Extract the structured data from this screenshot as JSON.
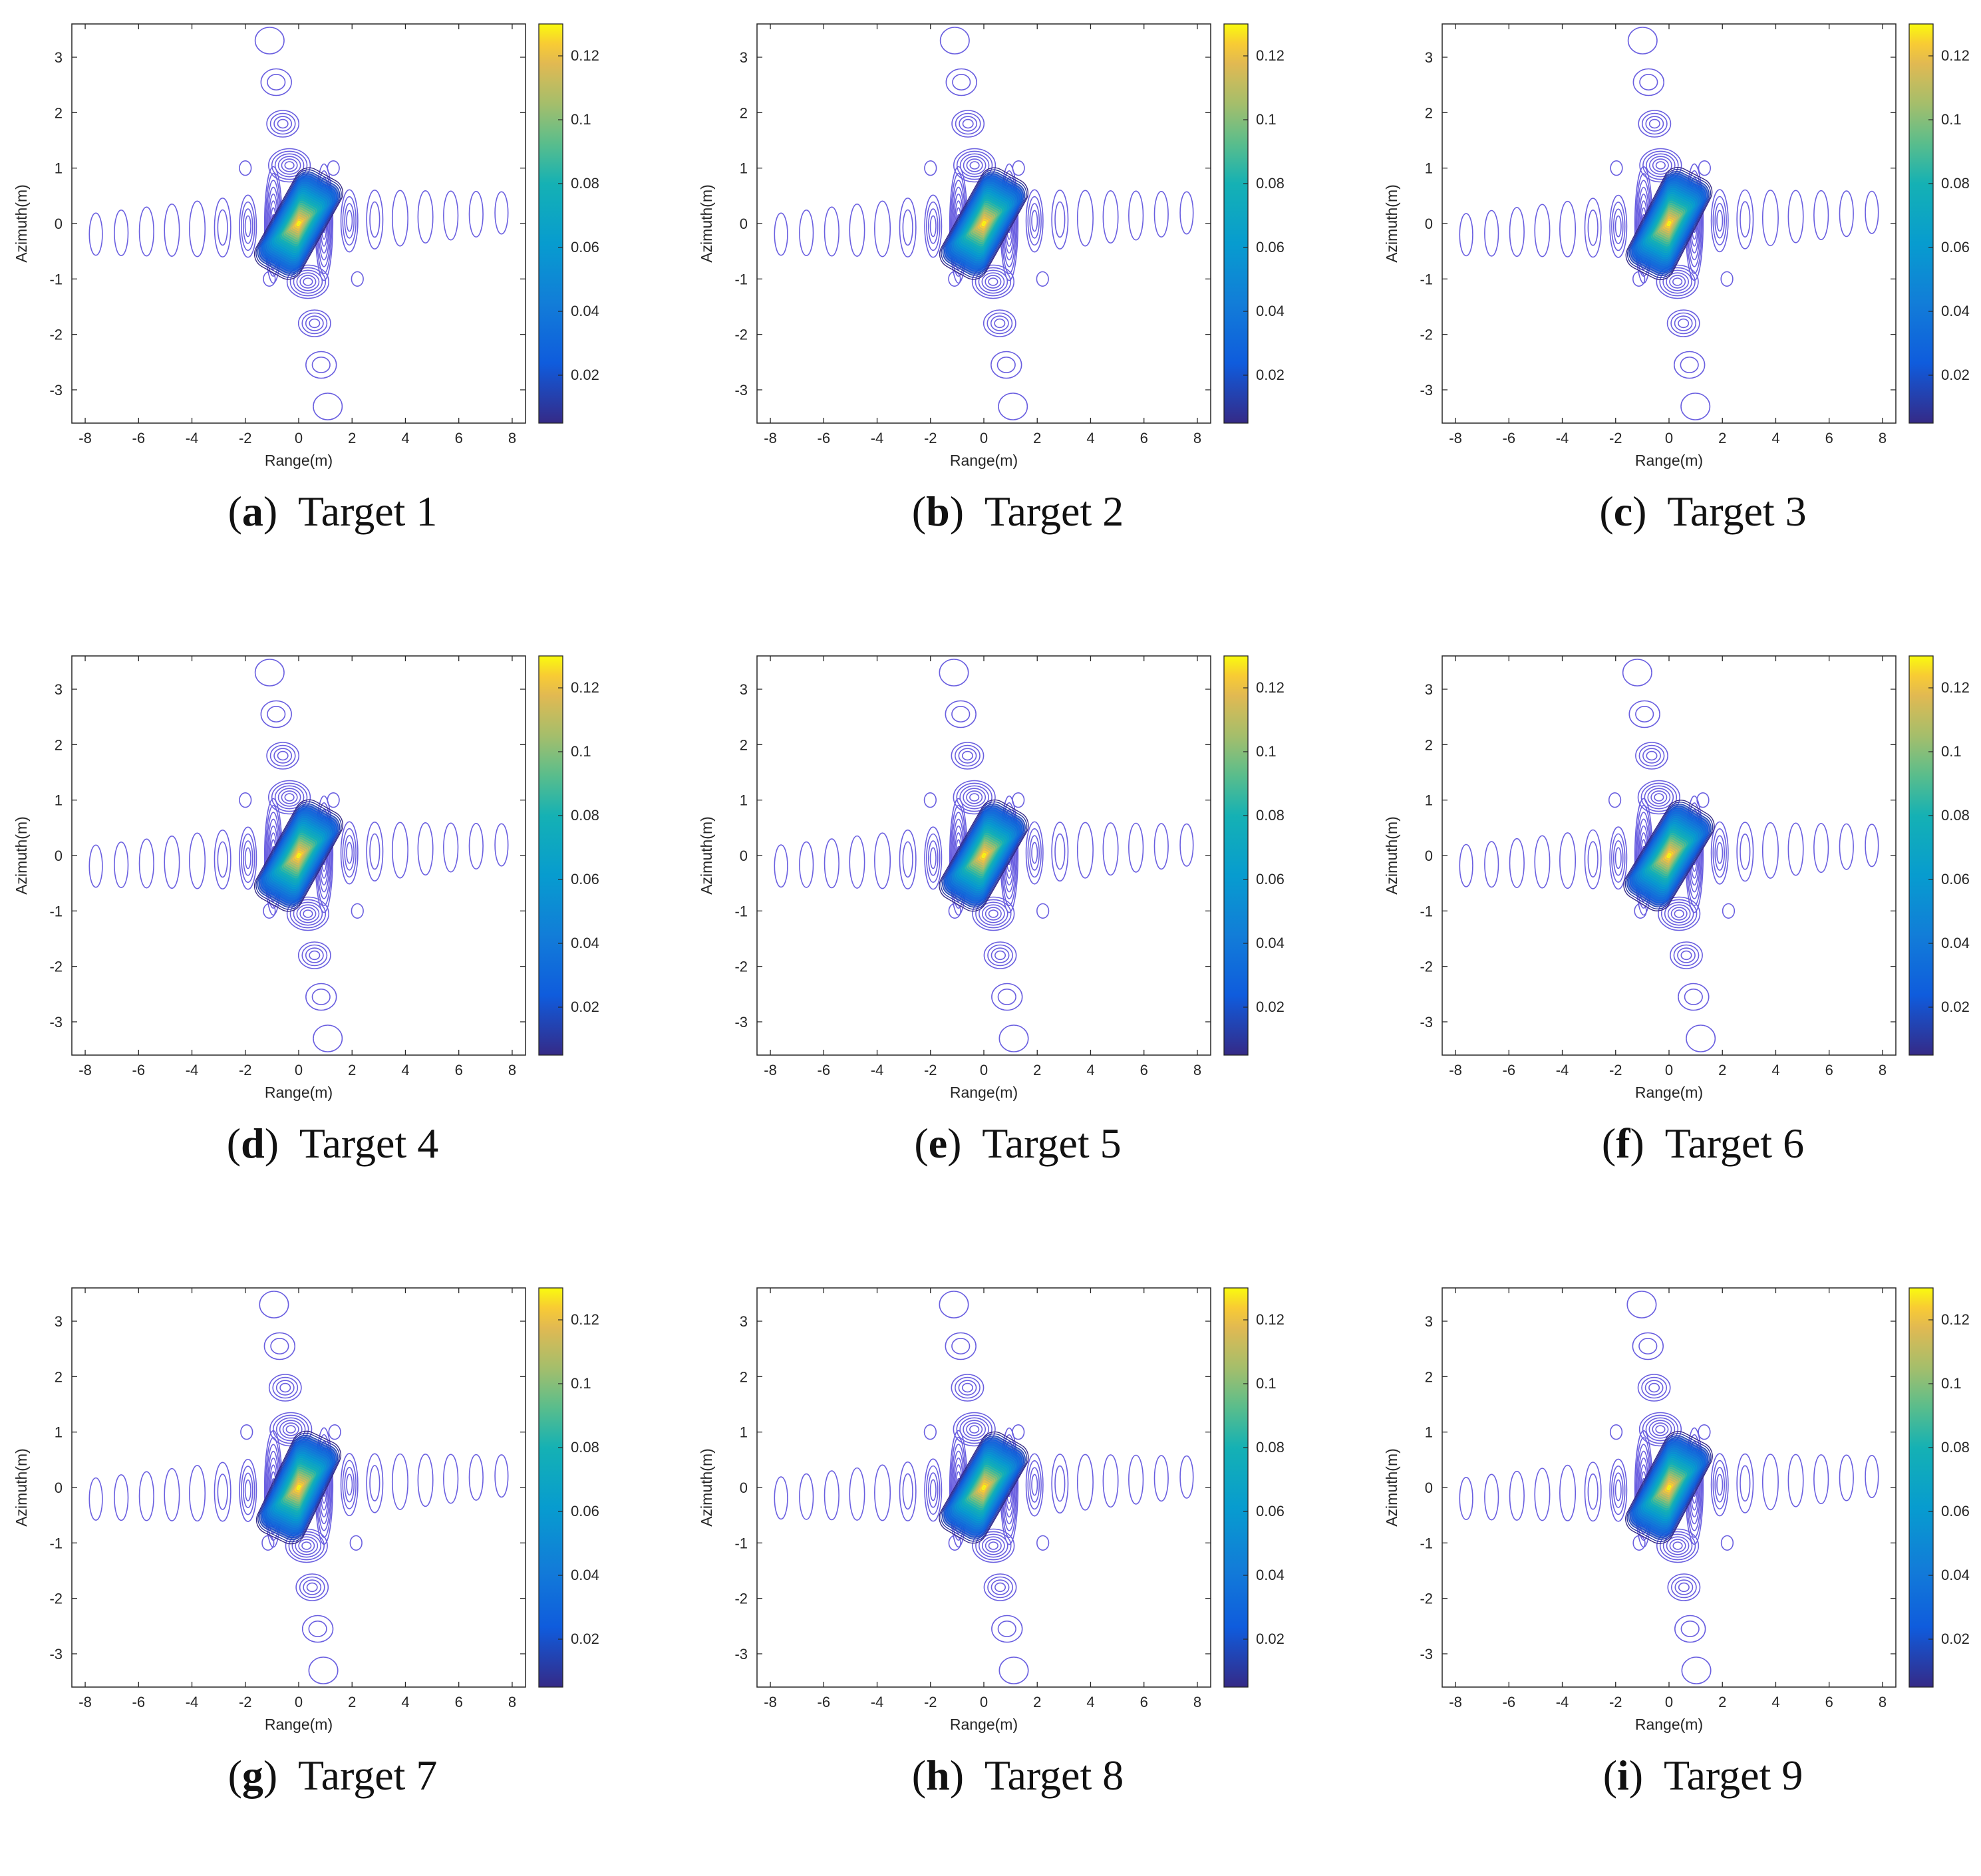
{
  "figure": {
    "panels": [
      {
        "letter": "a",
        "title": "Target 1",
        "tilt": -0.35,
        "shift": 0.0
      },
      {
        "letter": "b",
        "title": "Target 2",
        "tilt": -0.35,
        "shift": 0.0
      },
      {
        "letter": "c",
        "title": "Target 3",
        "tilt": -0.32,
        "shift": 0.0
      },
      {
        "letter": "d",
        "title": "Target 4",
        "tilt": -0.35,
        "shift": 0.0
      },
      {
        "letter": "e",
        "title": "Target 5",
        "tilt": -0.36,
        "shift": 0.0
      },
      {
        "letter": "f",
        "title": "Target 6",
        "tilt": -0.38,
        "shift": 0.0
      },
      {
        "letter": "g",
        "title": "Target 7",
        "tilt": -0.3,
        "shift": 0.0
      },
      {
        "letter": "h",
        "title": "Target 8",
        "tilt": -0.36,
        "shift": 0.0
      },
      {
        "letter": "i",
        "title": "Target 9",
        "tilt": -0.33,
        "shift": 0.0
      }
    ]
  },
  "chart_data": {
    "type": "contour",
    "xlabel": "Range(m)",
    "ylabel": "Azimuth(m)",
    "xlim": [
      -8.5,
      8.5
    ],
    "ylim": [
      -3.6,
      3.6
    ],
    "xticks": [
      -8,
      -6,
      -4,
      -2,
      0,
      2,
      4,
      6,
      8
    ],
    "yticks": [
      -3,
      -2,
      -1,
      0,
      1,
      2,
      3
    ],
    "colorbar": {
      "range": [
        0.005,
        0.13
      ],
      "ticks": [
        0.02,
        0.04,
        0.06,
        0.08,
        0.1,
        0.12
      ],
      "tick_labels": [
        "0.02",
        "0.04",
        "0.06",
        "0.08",
        "0.1",
        "0.12"
      ],
      "colormap": "parula"
    },
    "peak_value": 0.13,
    "contour_line_color": "#6a5fe0"
  }
}
